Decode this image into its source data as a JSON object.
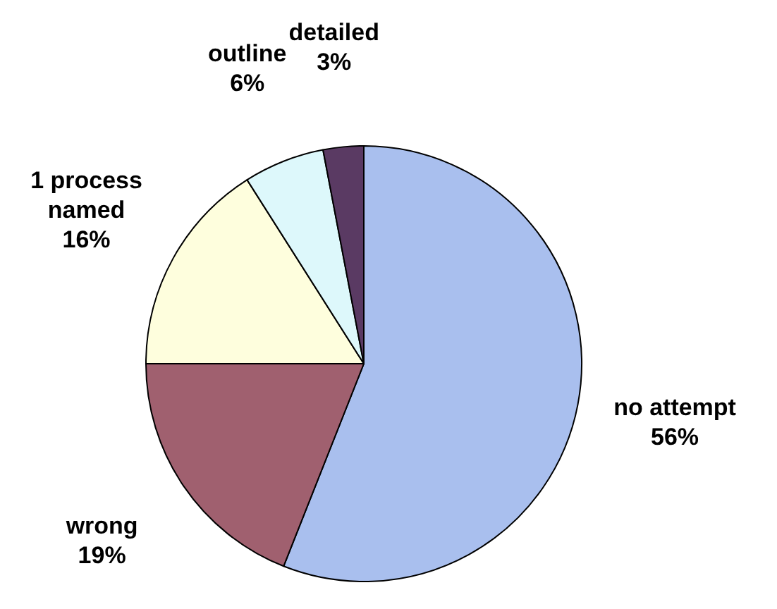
{
  "chart_data": {
    "type": "pie",
    "categories": [
      "no attempt",
      "wrong",
      "1 process named",
      "outline",
      "detailed"
    ],
    "values": [
      56,
      19,
      16,
      6,
      3
    ],
    "value_labels": [
      "56%",
      "19%",
      "16%",
      "6%",
      "3%"
    ],
    "colors": [
      "#a9bfee",
      "#a0606f",
      "#fefedd",
      "#ddf8fb",
      "#5a3a63"
    ],
    "legend": false
  }
}
